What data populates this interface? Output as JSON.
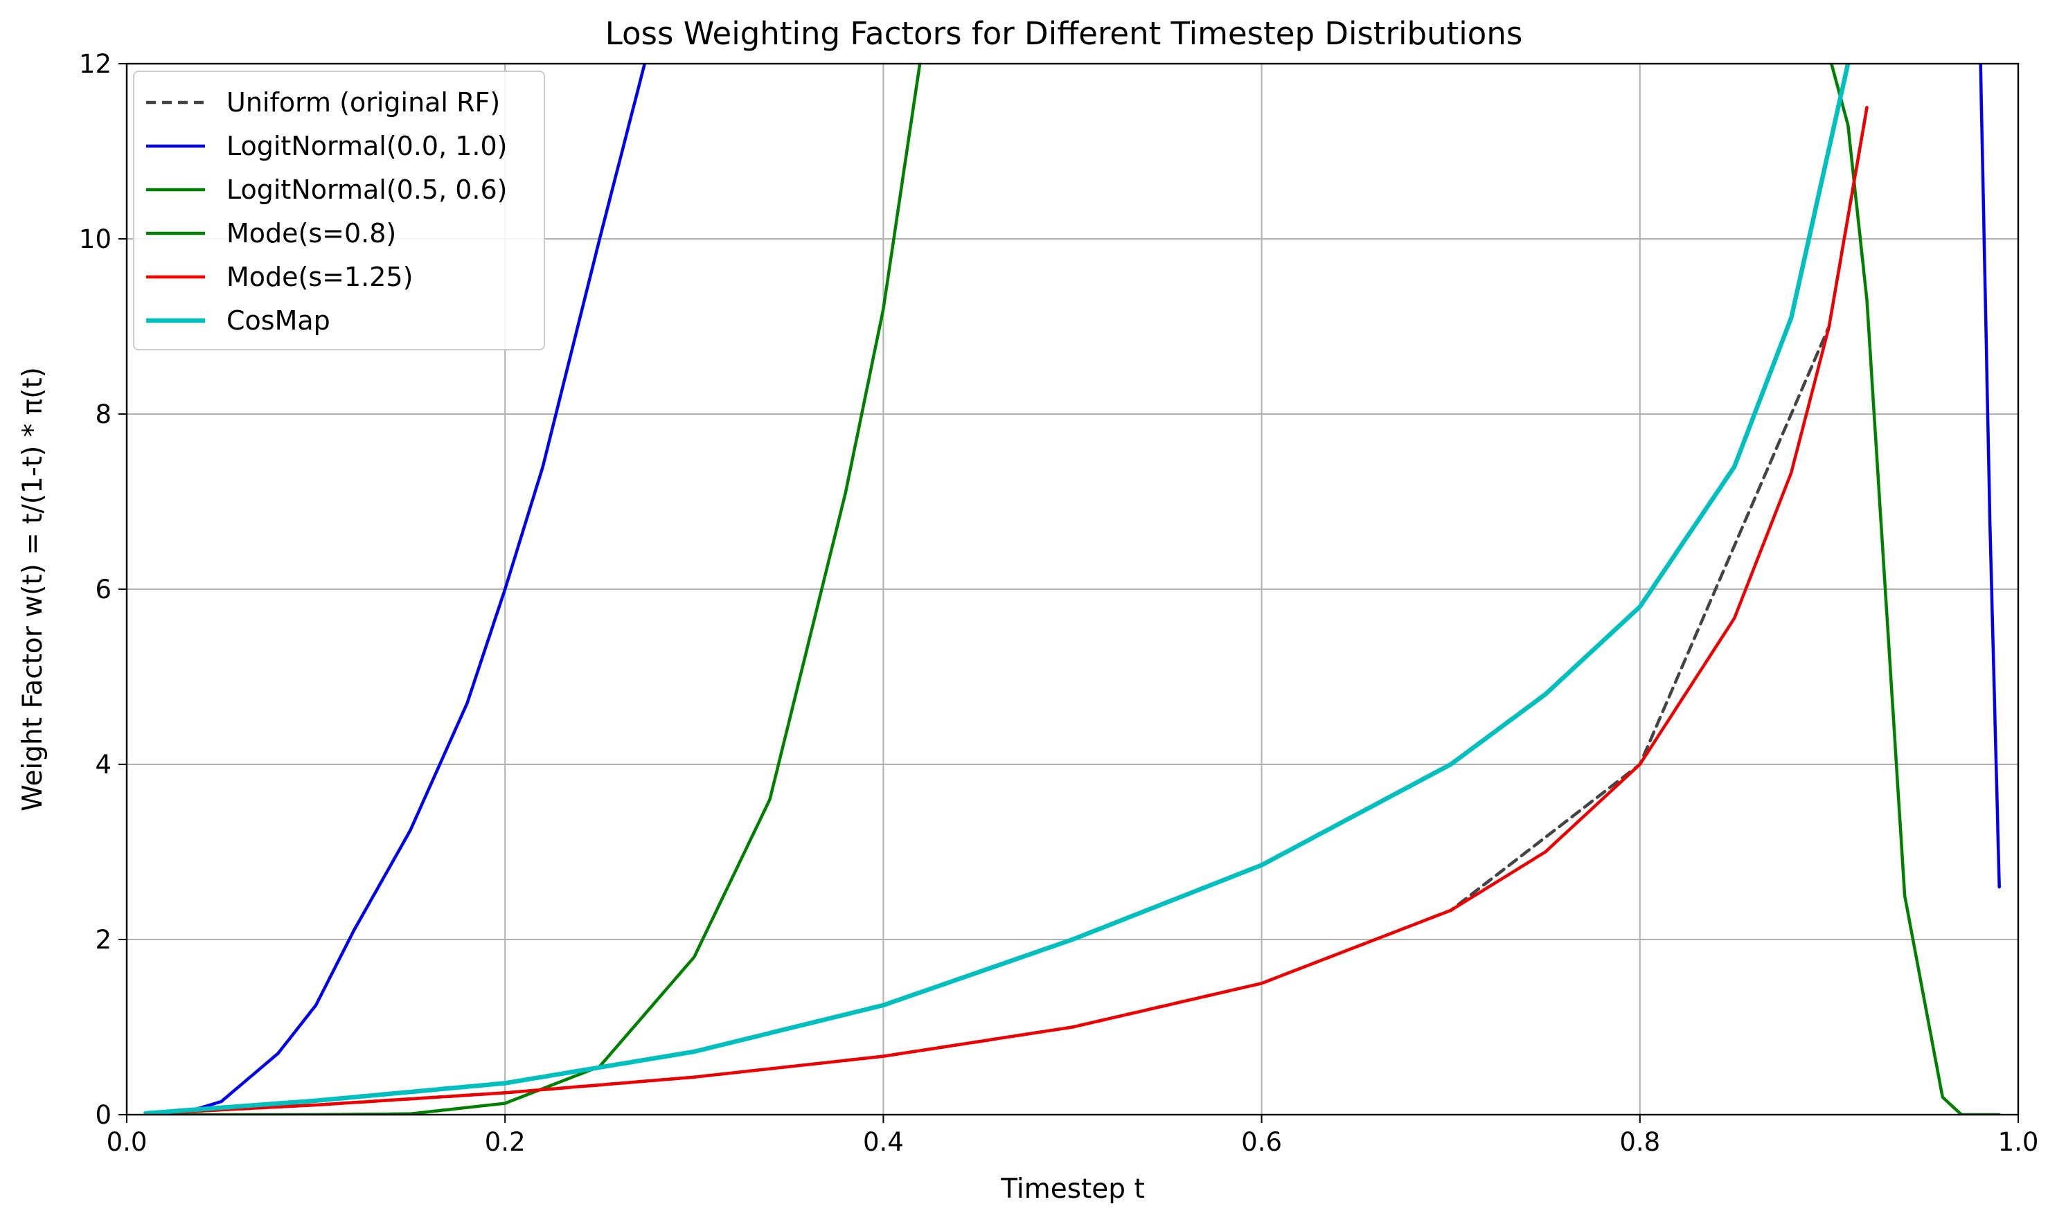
{
  "chart_data": {
    "type": "line",
    "title": "Loss Weighting Factors for Different Timestep Distributions",
    "xlabel": "Timestep t",
    "ylabel": "Weight Factor w(t) = t/(1-t) * π(t)",
    "xlim": [
      0.0,
      1.0
    ],
    "ylim": [
      0,
      12
    ],
    "xticks": [
      "0.0",
      "0.2",
      "0.4",
      "0.6",
      "0.8",
      "1.0"
    ],
    "yticks": [
      "0",
      "2",
      "4",
      "6",
      "8",
      "10",
      "12"
    ],
    "grid": true,
    "legend_position": "top-left",
    "series": [
      {
        "name": "Uniform (original RF)",
        "color": "#444444",
        "style": "dashed",
        "x": [
          0.01,
          0.1,
          0.2,
          0.3,
          0.4,
          0.5,
          0.6,
          0.7,
          0.8,
          0.9,
          0.92
        ],
        "y": [
          0.0101,
          0.111,
          0.25,
          0.429,
          0.667,
          1.0,
          1.5,
          2.333,
          4.0,
          9.0,
          11.5
        ]
      },
      {
        "name": "LogitNormal(0.0, 1.0)",
        "color": "#0000ee",
        "style": "solid",
        "x": [
          0.01,
          0.03,
          0.05,
          0.08,
          0.1,
          0.12,
          0.15,
          0.18,
          0.2,
          0.22,
          0.25,
          0.275,
          0.98,
          0.985,
          0.99
        ],
        "y": [
          0.0,
          0.02,
          0.15,
          0.7,
          1.25,
          2.1,
          3.25,
          4.7,
          6.0,
          7.4,
          10.0,
          12.1,
          12.1,
          6.8,
          2.6
        ]
      },
      {
        "name": "LogitNormal(0.5, 0.6)",
        "color": "#008000",
        "style": "solid",
        "x": [
          0.01,
          0.1,
          0.15,
          0.2,
          0.25,
          0.3,
          0.34,
          0.38,
          0.4,
          0.42,
          0.9,
          0.91,
          0.92,
          0.94,
          0.96,
          0.97,
          0.99
        ],
        "y": [
          0.0,
          0.0,
          0.01,
          0.13,
          0.55,
          1.8,
          3.6,
          7.1,
          9.2,
          12.1,
          12.1,
          11.3,
          9.3,
          2.5,
          0.2,
          0.0,
          0.0
        ]
      },
      {
        "name": "Mode(s=0.8)",
        "color": "#008000",
        "style": "solid",
        "x": [],
        "y": []
      },
      {
        "name": "Mode(s=1.25)",
        "color": "#ee0000",
        "style": "solid",
        "x": [
          0.01,
          0.1,
          0.2,
          0.3,
          0.4,
          0.5,
          0.6,
          0.7,
          0.75,
          0.8,
          0.85,
          0.88,
          0.9,
          0.92
        ],
        "y": [
          0.0101,
          0.111,
          0.25,
          0.429,
          0.667,
          1.0,
          1.5,
          2.333,
          3.0,
          4.0,
          5.67,
          7.33,
          9.0,
          11.5
        ]
      },
      {
        "name": "CosMap",
        "color": "#00bfbf",
        "style": "solid",
        "x": [
          0.01,
          0.1,
          0.2,
          0.3,
          0.4,
          0.5,
          0.6,
          0.7,
          0.75,
          0.8,
          0.85,
          0.88,
          0.91
        ],
        "y": [
          0.016,
          0.16,
          0.36,
          0.72,
          1.25,
          2.0,
          2.85,
          4.0,
          4.8,
          5.8,
          7.4,
          9.1,
          12.0
        ]
      }
    ]
  }
}
